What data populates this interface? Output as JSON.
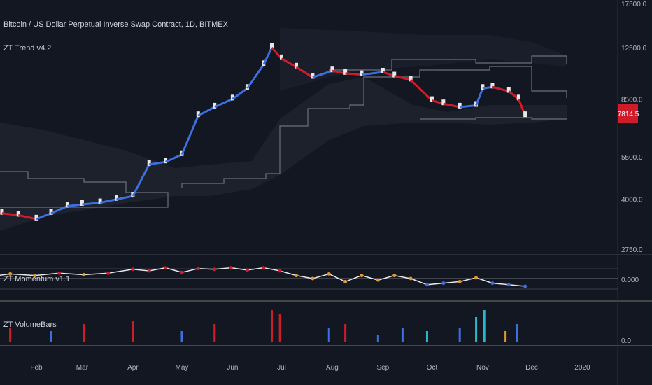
{
  "title": "Bitcoin / US Dollar Perpetual Inverse Swap Contract, 1D, BITMEX",
  "indicators": {
    "trend": "ZT Trend v4.2",
    "momentum": "ZT Momentum v1.1",
    "volume": "ZT VolumeBars"
  },
  "last_price": "7814.5",
  "colors": {
    "background": "#131722",
    "up": "#3d6fe0",
    "down": "#d01c2a",
    "neutral": "#e8e8e8",
    "orange": "#e39a2c",
    "cyan": "#27b9c9",
    "price_badge": "#d01c2a"
  },
  "chart_data": [
    {
      "type": "line",
      "panel": "price",
      "y_ticks": [
        "17500.0",
        "12500.0",
        "8500.0",
        "5500.0",
        "4000.0",
        "2750.0"
      ],
      "y_tick_values": [
        17500,
        12500,
        8500,
        5500,
        4000,
        2750
      ],
      "log_scale": true,
      "x_ticks": [
        "Feb",
        "Mar",
        "Apr",
        "May",
        "Jun",
        "Jul",
        "Aug",
        "Sep",
        "Oct",
        "Nov",
        "Dec",
        "2020"
      ],
      "x_tick_days": [
        31,
        59,
        90,
        120,
        151,
        181,
        212,
        243,
        273,
        304,
        334,
        365
      ],
      "series": [
        {
          "values_day": [
            0,
            10,
            20,
            31,
            40,
            50,
            59,
            70,
            80,
            90,
            100,
            110,
            120,
            130,
            140,
            151,
            160,
            170,
            175,
            181,
            190,
            200,
            212,
            220,
            230,
            243,
            250,
            260,
            273,
            280,
            290,
            300,
            304,
            310,
            320,
            326,
            330
          ],
          "values": [
            3700,
            3600,
            3550,
            3450,
            3600,
            3800,
            3850,
            3900,
            4000,
            4100,
            5200,
            5300,
            5600,
            7500,
            8000,
            8500,
            9200,
            11000,
            12500,
            11500,
            10800,
            10000,
            10500,
            10300,
            10200,
            10400,
            10100,
            9800,
            8400,
            8200,
            8000,
            8100,
            9200,
            9300,
            9000,
            8500,
            7500
          ]
        }
      ]
    },
    {
      "type": "line",
      "panel": "momentum",
      "y_ticks": [
        "0.000"
      ],
      "ylim": [
        -1,
        1
      ],
      "series": [
        {
          "values_day": [
            0,
            15,
            30,
            45,
            60,
            75,
            90,
            100,
            110,
            120,
            130,
            140,
            150,
            160,
            170,
            180,
            190,
            200,
            210,
            220,
            230,
            240,
            250,
            260,
            270,
            280,
            290,
            300,
            310,
            320,
            330
          ],
          "values": [
            0.1,
            0.3,
            0.2,
            0.35,
            0.25,
            0.35,
            0.6,
            0.5,
            0.7,
            0.4,
            0.65,
            0.6,
            0.7,
            0.55,
            0.7,
            0.5,
            0.2,
            0.0,
            0.3,
            -0.2,
            0.2,
            -0.1,
            0.2,
            0.0,
            -0.4,
            -0.3,
            -0.2,
            0.05,
            -0.3,
            -0.4,
            -0.5
          ]
        }
      ]
    },
    {
      "type": "bar",
      "panel": "volume",
      "y_ticks": [
        "0.0"
      ],
      "series": [
        {
          "values_day": [
            15,
            40,
            60,
            90,
            120,
            140,
            175,
            180,
            210,
            220,
            240,
            255,
            270,
            290,
            300,
            305,
            318,
            325
          ],
          "values": [
            4,
            3,
            5,
            6,
            3,
            5,
            9,
            8,
            4,
            5,
            2,
            4,
            3,
            4,
            7,
            9,
            3,
            5
          ],
          "colors": [
            "#d01c2a",
            "#3d6fe0",
            "#d01c2a",
            "#d01c2a",
            "#3d6fe0",
            "#d01c2a",
            "#d01c2a",
            "#d01c2a",
            "#3d6fe0",
            "#d01c2a",
            "#3d6fe0",
            "#3d6fe0",
            "#27b9c9",
            "#3d6fe0",
            "#27b9c9",
            "#27b9c9",
            "#e39a2c",
            "#3d6fe0"
          ]
        }
      ]
    }
  ]
}
